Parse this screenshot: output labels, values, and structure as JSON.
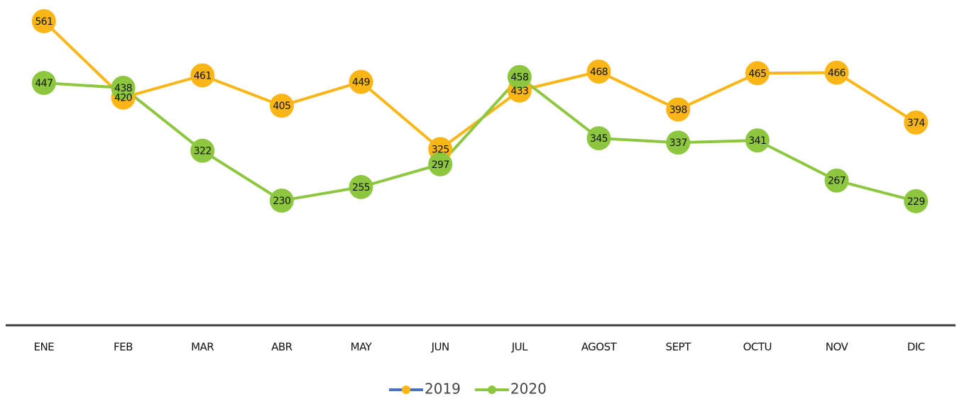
{
  "chart_data": {
    "type": "line",
    "categories": [
      "ENE",
      "FEB",
      "MAR",
      "ABR",
      "MAY",
      "JUN",
      "JUL",
      "AGOST",
      "SEPT",
      "OCTU",
      "NOV",
      "DIC"
    ],
    "series": [
      {
        "name": "2019",
        "color": "#f9b616",
        "legend_line_color": "#4472c4",
        "values": [
          561,
          420,
          461,
          405,
          449,
          325,
          433,
          468,
          398,
          465,
          466,
          374
        ]
      },
      {
        "name": "2020",
        "color": "#8dc63f",
        "values": [
          447,
          438,
          322,
          230,
          255,
          297,
          458,
          345,
          337,
          341,
          267,
          229
        ]
      }
    ],
    "ylim": [
      0,
      600
    ],
    "legend": "bottom"
  }
}
